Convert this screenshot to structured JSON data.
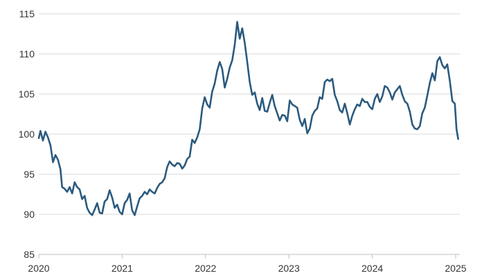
{
  "chart_data": {
    "type": "line",
    "title": "",
    "xlabel": "",
    "ylabel": "",
    "xlim": [
      2020.0,
      2025.05
    ],
    "ylim": [
      85,
      115
    ],
    "yticks": [
      85,
      90,
      95,
      100,
      105,
      110,
      115
    ],
    "yticklabels": [
      "85",
      "90",
      "95",
      "100",
      "105",
      "110",
      "115"
    ],
    "xticks": [
      2020,
      2021,
      2022,
      2023,
      2024,
      2025
    ],
    "xticklabels": [
      "2020",
      "2021",
      "2022",
      "2023",
      "2024",
      "2025"
    ],
    "grid": "horizontal",
    "legend": "none",
    "colors": {
      "series": "#2b5a7e",
      "grid": "#d9d9d9",
      "axis": "#bfbfbf",
      "text": "#333333"
    },
    "series": [
      {
        "x": [
          2020.0,
          2020.02,
          2020.05,
          2020.08,
          2020.11,
          2020.14,
          2020.17,
          2020.2,
          2020.23,
          2020.26,
          2020.28,
          2020.31,
          2020.34,
          2020.37,
          2020.4,
          2020.43,
          2020.46,
          2020.49,
          2020.52,
          2020.55,
          2020.58,
          2020.61,
          2020.64,
          2020.67,
          2020.7,
          2020.73,
          2020.76,
          2020.79,
          2020.82,
          2020.85,
          2020.88,
          2020.91,
          2020.94,
          2020.97,
          2021.0,
          2021.03,
          2021.06,
          2021.09,
          2021.12,
          2021.15,
          2021.18,
          2021.21,
          2021.24,
          2021.27,
          2021.3,
          2021.33,
          2021.36,
          2021.39,
          2021.42,
          2021.45,
          2021.48,
          2021.51,
          2021.54,
          2021.57,
          2021.6,
          2021.63,
          2021.66,
          2021.69,
          2021.72,
          2021.75,
          2021.78,
          2021.81,
          2021.84,
          2021.87,
          2021.9,
          2021.93,
          2021.96,
          2021.99,
          2022.02,
          2022.05,
          2022.08,
          2022.11,
          2022.14,
          2022.17,
          2022.2,
          2022.23,
          2022.26,
          2022.29,
          2022.32,
          2022.35,
          2022.38,
          2022.41,
          2022.44,
          2022.47,
          2022.5,
          2022.53,
          2022.56,
          2022.59,
          2022.62,
          2022.65,
          2022.68,
          2022.71,
          2022.74,
          2022.77,
          2022.8,
          2022.83,
          2022.86,
          2022.89,
          2022.92,
          2022.95,
          2022.98,
          2023.01,
          2023.04,
          2023.07,
          2023.1,
          2023.13,
          2023.16,
          2023.19,
          2023.22,
          2023.25,
          2023.28,
          2023.31,
          2023.34,
          2023.37,
          2023.4,
          2023.43,
          2023.46,
          2023.49,
          2023.52,
          2023.55,
          2023.58,
          2023.61,
          2023.64,
          2023.67,
          2023.7,
          2023.73,
          2023.76,
          2023.79,
          2023.82,
          2023.85,
          2023.88,
          2023.91,
          2023.94,
          2023.97,
          2024.0,
          2024.03,
          2024.06,
          2024.09,
          2024.12,
          2024.15,
          2024.18,
          2024.21,
          2024.24,
          2024.27,
          2024.3,
          2024.33,
          2024.36,
          2024.39,
          2024.42,
          2024.45,
          2024.48,
          2024.51,
          2024.54,
          2024.57,
          2024.6,
          2024.63,
          2024.66,
          2024.69,
          2024.72,
          2024.75,
          2024.78,
          2024.81,
          2024.84,
          2024.87,
          2024.9,
          2024.93,
          2024.96,
          2024.99,
          2025.01,
          2025.03
        ],
        "y": [
          99.5,
          100.4,
          99.2,
          100.3,
          99.6,
          98.6,
          96.5,
          97.4,
          96.8,
          95.6,
          93.4,
          93.2,
          92.8,
          93.4,
          92.6,
          94.0,
          93.4,
          93.1,
          91.9,
          92.3,
          90.8,
          90.2,
          89.9,
          90.6,
          91.4,
          90.2,
          90.1,
          91.6,
          91.9,
          93.0,
          92.1,
          90.8,
          91.2,
          90.3,
          90.0,
          91.4,
          91.8,
          92.6,
          90.5,
          89.9,
          91.0,
          92.0,
          92.3,
          92.8,
          92.5,
          93.1,
          92.8,
          92.6,
          93.3,
          93.8,
          94.0,
          94.5,
          95.9,
          96.6,
          96.2,
          96.0,
          96.4,
          96.3,
          95.7,
          96.1,
          96.9,
          97.2,
          99.3,
          98.9,
          99.6,
          100.6,
          103.2,
          104.6,
          103.7,
          103.3,
          105.3,
          106.3,
          107.9,
          109.0,
          108.1,
          105.8,
          106.9,
          108.3,
          109.2,
          111.1,
          114.0,
          111.9,
          113.2,
          111.4,
          109.0,
          106.5,
          104.9,
          105.2,
          103.8,
          103.0,
          104.5,
          102.9,
          102.8,
          103.9,
          104.9,
          103.5,
          102.6,
          101.7,
          102.4,
          102.3,
          101.6,
          104.2,
          103.7,
          103.5,
          103.3,
          101.8,
          101.0,
          101.9,
          100.1,
          100.7,
          102.3,
          102.9,
          103.2,
          104.6,
          104.4,
          106.5,
          106.8,
          106.6,
          106.9,
          104.9,
          104.1,
          103.0,
          102.7,
          103.8,
          102.6,
          101.2,
          102.3,
          103.1,
          103.7,
          103.5,
          104.4,
          104.0,
          104.0,
          103.4,
          103.1,
          104.4,
          105.0,
          104.0,
          104.7,
          106.0,
          105.8,
          105.2,
          104.3,
          105.2,
          105.6,
          106.0,
          104.9,
          104.1,
          103.8,
          102.8,
          101.2,
          100.7,
          100.6,
          101.0,
          102.6,
          103.3,
          104.8,
          106.4,
          107.6,
          106.7,
          109.1,
          109.6,
          108.6,
          108.2,
          108.7,
          106.6,
          104.1,
          103.8,
          100.6,
          99.4
        ]
      }
    ]
  }
}
